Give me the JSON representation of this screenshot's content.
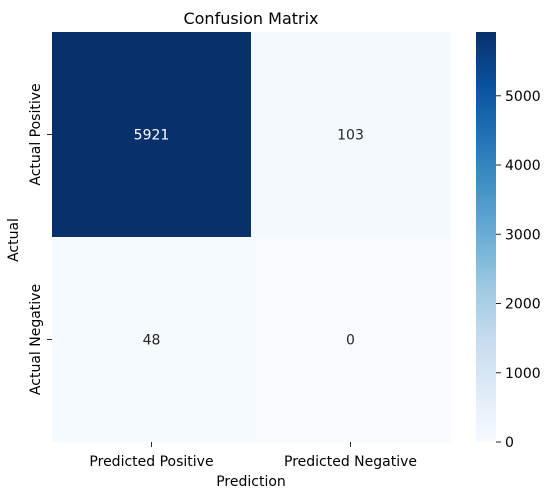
{
  "chart_data": {
    "type": "heatmap",
    "title": "Confusion Matrix",
    "xlabel": "Prediction",
    "ylabel": "Actual",
    "x_categories": [
      "Predicted Positive",
      "Predicted Negative"
    ],
    "y_categories": [
      "Actual Positive",
      "Actual Negative"
    ],
    "values": [
      [
        5921,
        103
      ],
      [
        48,
        0
      ]
    ],
    "annotations": [
      [
        "5921",
        "103"
      ],
      [
        "48",
        "0"
      ]
    ],
    "colormap": "Blues",
    "vmin": 0,
    "vmax": 5921,
    "colorbar_ticks": [
      0,
      1000,
      2000,
      3000,
      4000,
      5000
    ],
    "colorbar_tick_labels": [
      "0",
      "1000",
      "2000",
      "3000",
      "4000",
      "5000"
    ],
    "grid": false
  }
}
